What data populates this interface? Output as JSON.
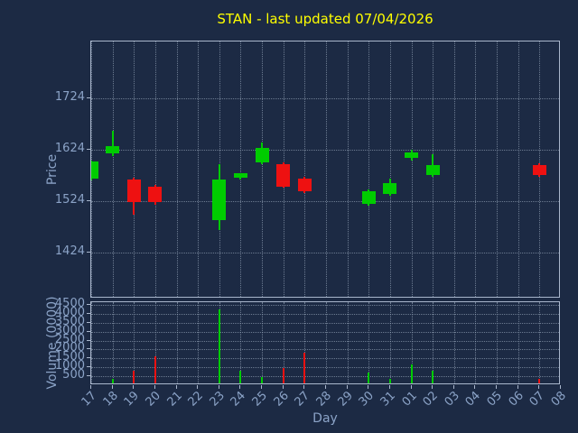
{
  "colors": {
    "background": "#1c2a44",
    "title": "#ffff00",
    "axis_text": "#8ba3c7",
    "border": "#a9b6cc",
    "up": "#00cc00",
    "down": "#ee1111"
  },
  "chart_data": {
    "type": "candlestick",
    "title": "STAN - last updated 07/04/2026",
    "xlabel": "Day",
    "grid": true,
    "price_axis": {
      "label": "Price",
      "ticks": [
        1424,
        1524,
        1624,
        1724
      ],
      "range": [
        1334,
        1834
      ]
    },
    "volume_axis": {
      "label": "Volume (0000)",
      "ticks": [
        500,
        1000,
        1500,
        2000,
        2500,
        3000,
        3500,
        4000,
        4500
      ],
      "range": [
        0,
        4650
      ]
    },
    "days": [
      "17",
      "18",
      "19",
      "20",
      "21",
      "22",
      "23",
      "24",
      "25",
      "26",
      "27",
      "28",
      "29",
      "30",
      "31",
      "01",
      "02",
      "03",
      "04",
      "05",
      "06",
      "07",
      "08"
    ],
    "candles": [
      {
        "day": "17",
        "open": 1568,
        "high": 1603,
        "low": 1563,
        "close": 1601,
        "volume": 0
      },
      {
        "day": "18",
        "open": 1616,
        "high": 1661,
        "low": 1612,
        "close": 1630,
        "volume": 350
      },
      {
        "day": "19",
        "open": 1565,
        "high": 1569,
        "low": 1497,
        "close": 1521,
        "volume": 800
      },
      {
        "day": "20",
        "open": 1551,
        "high": 1555,
        "low": 1517,
        "close": 1521,
        "volume": 1600
      },
      {
        "day": "23",
        "open": 1487,
        "high": 1596,
        "low": 1468,
        "close": 1565,
        "volume": 4250
      },
      {
        "day": "24",
        "open": 1569,
        "high": 1578,
        "low": 1566,
        "close": 1577,
        "volume": 800
      },
      {
        "day": "25",
        "open": 1599,
        "high": 1637,
        "low": 1596,
        "close": 1627,
        "volume": 450
      },
      {
        "day": "26",
        "open": 1596,
        "high": 1599,
        "low": 1549,
        "close": 1552,
        "volume": 950
      },
      {
        "day": "27",
        "open": 1568,
        "high": 1571,
        "low": 1539,
        "close": 1542,
        "volume": 1800
      },
      {
        "day": "30",
        "open": 1518,
        "high": 1546,
        "low": 1514,
        "close": 1542,
        "volume": 700
      },
      {
        "day": "31",
        "open": 1537,
        "high": 1567,
        "low": 1534,
        "close": 1559,
        "volume": 350
      },
      {
        "day": "01",
        "open": 1608,
        "high": 1624,
        "low": 1603,
        "close": 1618,
        "volume": 1150
      },
      {
        "day": "02",
        "open": 1575,
        "high": 1614,
        "low": 1571,
        "close": 1594,
        "volume": 800
      },
      {
        "day": "07",
        "open": 1594,
        "high": 1597,
        "low": 1571,
        "close": 1575,
        "volume": 350
      }
    ]
  }
}
